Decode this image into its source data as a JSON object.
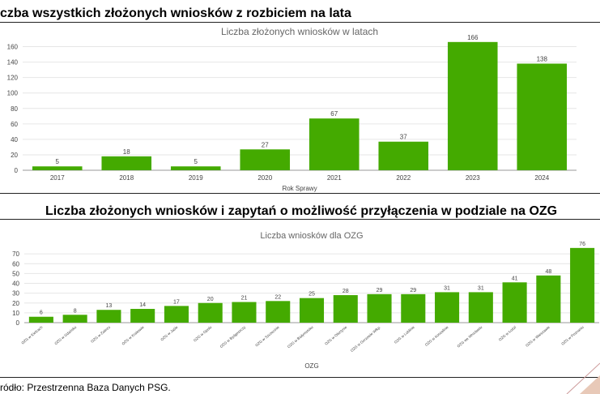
{
  "headings": {
    "top": "czba wszystkich złożonych wniosków z rozbiciem na lata",
    "bottom": "Liczba złożonych wniosków i zapytań o możliwość przyłączenia w podziale na OZG"
  },
  "source": "ródło: Przestrzenna Baza Danych PSG.",
  "colors": {
    "bar": "#44aa00",
    "grid": "#e6e6e6",
    "axis_text": "#444444",
    "title_text": "#666666"
  },
  "chart_data": [
    {
      "type": "bar",
      "title": "Liczba złożonych wniosków w latach",
      "xlabel": "Rok Sprawy",
      "ylabel": "",
      "ylim": [
        0,
        170
      ],
      "yticks": [
        0,
        20,
        40,
        60,
        80,
        100,
        120,
        140,
        160
      ],
      "grid": true,
      "categories": [
        "2017",
        "2018",
        "2019",
        "2020",
        "2021",
        "2022",
        "2023",
        "2024"
      ],
      "values": [
        5,
        18,
        5,
        27,
        67,
        37,
        166,
        138
      ]
    },
    {
      "type": "bar",
      "title": "Liczba wniosków dla OZG",
      "xlabel": "OZG",
      "ylabel": "",
      "ylim": [
        0,
        80
      ],
      "yticks": [
        0,
        10,
        20,
        30,
        40,
        50,
        60,
        70
      ],
      "grid": true,
      "categories": [
        "OZG w Kielcach",
        "OZG w Gdańsku",
        "OZG w Zabrzu",
        "OZG w Krakowie",
        "OZG w Jaśle",
        "OZG w Opolu",
        "OZG w Bydgoszczy",
        "OZG w Szczecinie",
        "OZG w Białymstoku",
        "OZG w Olsztynie",
        "OZG w Gorzowie Wlkp.",
        "OZG w Lublinie",
        "OZG w Koszalinie",
        "OZG we Wrocławiu",
        "OZG w Łodzi",
        "OZG w Warszawie",
        "OZG w Poznaniu"
      ],
      "values": [
        6,
        8,
        13,
        14,
        17,
        20,
        21,
        22,
        25,
        28,
        29,
        29,
        31,
        31,
        41,
        48,
        76
      ]
    }
  ]
}
